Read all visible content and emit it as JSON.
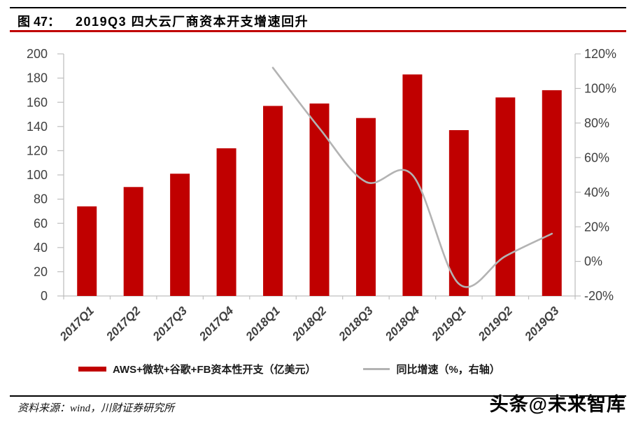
{
  "header": {
    "figure_label": "图 47：",
    "title": "2019Q3 四大云厂商资本开支增速回升"
  },
  "chart_data": {
    "type": "bar",
    "categories": [
      "2017Q1",
      "2017Q2",
      "2017Q3",
      "2017Q4",
      "2018Q1",
      "2018Q2",
      "2018Q3",
      "2018Q4",
      "2019Q1",
      "2019Q2",
      "2019Q3"
    ],
    "series": [
      {
        "name": "AWS+微软+谷歌+FB资本性开支（亿美元）",
        "type": "bar",
        "axis": "left",
        "color": "#c00000",
        "values": [
          74,
          90,
          101,
          122,
          157,
          159,
          147,
          183,
          137,
          164,
          170
        ]
      },
      {
        "name": "同比增速（%，右轴）",
        "type": "line",
        "axis": "right",
        "color": "#b3b3b3",
        "smooth": true,
        "values": [
          null,
          null,
          null,
          null,
          112,
          77,
          46,
          50,
          -13,
          3,
          16
        ]
      }
    ],
    "left_axis": {
      "min": 0,
      "max": 200,
      "step": 20,
      "tick_labels": [
        "0",
        "20",
        "40",
        "60",
        "80",
        "100",
        "120",
        "140",
        "160",
        "180",
        "200"
      ]
    },
    "right_axis": {
      "min": -20,
      "max": 120,
      "step": 20,
      "tick_labels": [
        "-20%",
        "0%",
        "20%",
        "40%",
        "60%",
        "80%",
        "100%",
        "120%"
      ]
    },
    "grid": false,
    "legend_position": "bottom"
  },
  "footer": {
    "source": "资料来源：wind，川财证券研究所",
    "watermark": "头条@未来智库"
  },
  "colors": {
    "bar": "#c00000",
    "line": "#b3b3b3",
    "axis": "#bfbfbf",
    "tick_text": "#404040",
    "rule_red": "#c00000",
    "rule_black": "#000000"
  }
}
